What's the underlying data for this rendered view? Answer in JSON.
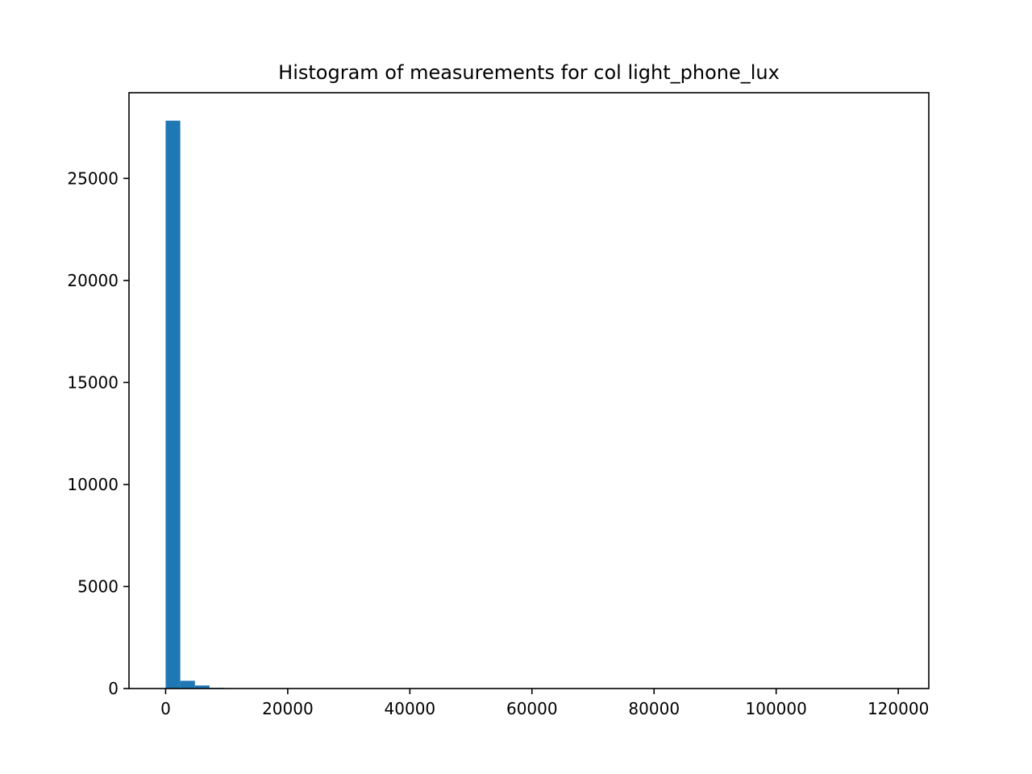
{
  "chart_data": {
    "type": "bar",
    "title": "Histogram of measurements for col light_phone_lux",
    "xlabel": "",
    "ylabel": "",
    "xlim": [
      -6000,
      125000
    ],
    "ylim": [
      0,
      29200
    ],
    "grid": false,
    "x_ticks": [
      0,
      20000,
      40000,
      60000,
      80000,
      100000,
      120000
    ],
    "x_tick_labels": [
      "0",
      "20000",
      "40000",
      "60000",
      "80000",
      "100000",
      "120000"
    ],
    "y_ticks": [
      0,
      5000,
      10000,
      15000,
      20000,
      25000
    ],
    "y_tick_labels": [
      "0",
      "5000",
      "10000",
      "15000",
      "20000",
      "25000"
    ],
    "bin_edges": [
      0,
      2400,
      4800,
      7200,
      9600,
      12000,
      14400,
      16800,
      19200,
      21600,
      24000,
      26400,
      28800,
      31200,
      33600,
      36000,
      38400,
      40800,
      43200,
      45600,
      48000,
      50400,
      52800,
      55200,
      57600,
      60000,
      62400,
      64800,
      67200,
      69600,
      72000,
      74400,
      76800,
      79200,
      81600,
      84000,
      86400,
      88800,
      91200,
      93600,
      96000,
      98400,
      100800,
      103200,
      105600,
      108000,
      110400,
      112800,
      115200,
      117600,
      120000
    ],
    "counts": [
      27830,
      380,
      150,
      40,
      20,
      10,
      5,
      3,
      2,
      2,
      1,
      1,
      1,
      0,
      0,
      1,
      0,
      0,
      1,
      0,
      0,
      0,
      0,
      0,
      0,
      0,
      0,
      0,
      0,
      0,
      0,
      0,
      0,
      0,
      0,
      0,
      0,
      0,
      0,
      0,
      0,
      0,
      0,
      0,
      0,
      0,
      0,
      0,
      0,
      1
    ],
    "bar_color": "#1f77b4"
  }
}
